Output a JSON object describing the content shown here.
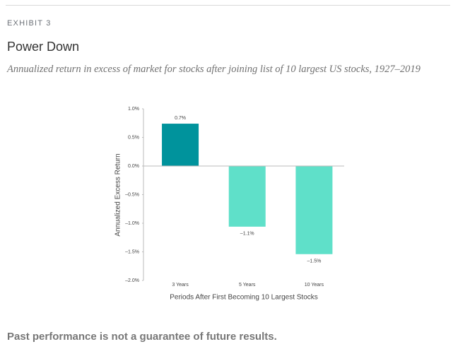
{
  "header": {
    "exhibit": "EXHIBIT 3"
  },
  "chart_data": {
    "type": "bar",
    "title": "Power Down",
    "subtitle": "Annualized return in excess of market for stocks after joining list of 10 largest US stocks, 1927–2019",
    "xlabel": "Periods After First Becoming 10 Largest Stocks",
    "ylabel": "Annualized Excess Return",
    "categories": [
      "3 Years",
      "5 Years",
      "10 Years"
    ],
    "values": [
      0.74,
      -1.06,
      -1.54
    ],
    "value_labels": [
      "0.7%",
      "–1.1%",
      "–1.5%"
    ],
    "colors": [
      "#00939c",
      "#5fe0c9",
      "#5fe0c9"
    ],
    "ylim": [
      -2,
      1
    ],
    "yticks": [
      {
        "value": 1,
        "label": "1.0%"
      },
      {
        "value": 0.5,
        "label": "0.5%"
      },
      {
        "value": 0,
        "label": "0.0%"
      },
      {
        "value": -0.5,
        "label": "–0.5%"
      },
      {
        "value": -1,
        "label": "–1.0%"
      },
      {
        "value": -1.5,
        "label": "–1.5%"
      },
      {
        "value": -2,
        "label": "–2.0%"
      }
    ]
  },
  "footer": "Past performance is not a guarantee of future results."
}
